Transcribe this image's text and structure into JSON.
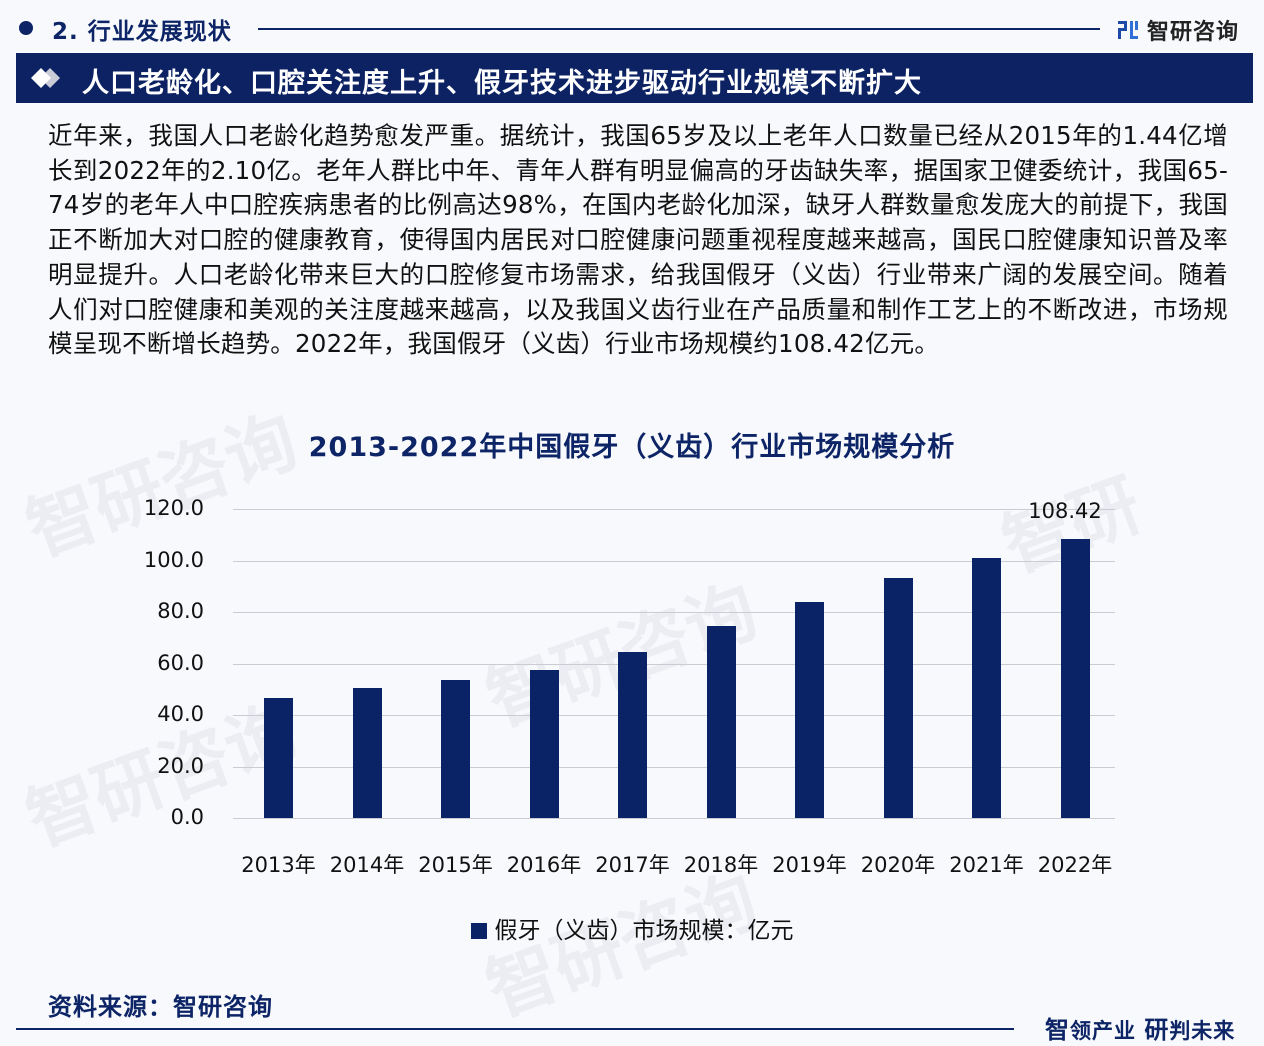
{
  "header": {
    "section_title": "2. 行业发展现状",
    "logo_text": "智研咨询",
    "banner_title": "人口老龄化、口腔关注度上升、假牙技术进步驱动行业规模不断扩大"
  },
  "body": {
    "paragraph": "近年来，我国人口老龄化趋势愈发严重。据统计，我国65岁及以上老年人口数量已经从2015年的1.44亿增长到2022年的2.10亿。老年人群比中年、青年人群有明显偏高的牙齿缺失率，据国家卫健委统计，我国65-74岁的老年人中口腔疾病患者的比例高达98%，在国内老龄化加深，缺牙人群数量愈发庞大的前提下，我国正不断加大对口腔的健康教育，使得国内居民对口腔健康问题重视程度越来越高，国民口腔健康知识普及率明显提升。人口老龄化带来巨大的口腔修复市场需求，给我国假牙（义齿）行业带来广阔的发展空间。随着人们对口腔健康和美观的关注度越来越高，以及我国义齿行业在产品质量和制作工艺上的不断改进，市场规模呈现不断增长趋势。2022年，我国假牙（义齿）行业市场规模约108.42亿元。"
  },
  "chart_data": {
    "type": "bar",
    "title": "2013-2022年中国假牙（义齿）行业市场规模分析",
    "xlabel": "",
    "ylabel": "",
    "categories": [
      "2013年",
      "2014年",
      "2015年",
      "2016年",
      "2017年",
      "2018年",
      "2019年",
      "2020年",
      "2021年",
      "2022年"
    ],
    "series": [
      {
        "name": "假牙（义齿）市场规模：亿元",
        "color": "#0a2266",
        "values": [
          46.6,
          50.5,
          53.6,
          57.5,
          64.5,
          74.6,
          83.9,
          93.2,
          101.0,
          108.42
        ]
      }
    ],
    "data_labels": [
      {
        "index": 9,
        "text": "108.42"
      }
    ],
    "yticks": [
      "0.0",
      "20.0",
      "40.0",
      "60.0",
      "80.0",
      "100.0",
      "120.0"
    ],
    "ylim": [
      0,
      120
    ],
    "grid": true,
    "legend_position": "bottom"
  },
  "footer": {
    "source": "资料来源：智研咨询",
    "slogan_a_big": "智",
    "slogan_a": "领产业",
    "slogan_b_big": "研",
    "slogan_b": "判未来"
  },
  "colors": {
    "brand_navy": "#0c2263",
    "bar": "#0a2266",
    "grid": "#c9ccd3"
  }
}
